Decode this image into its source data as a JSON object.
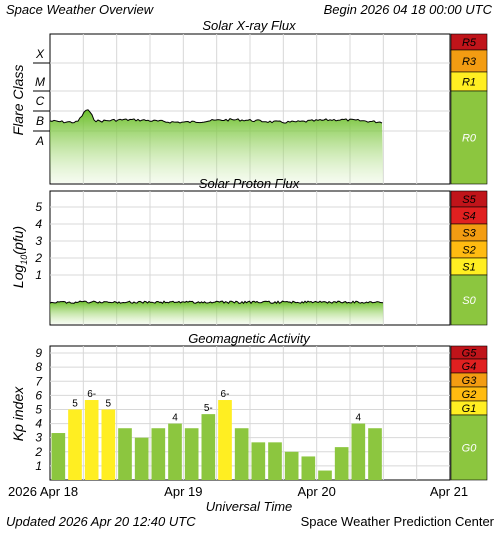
{
  "header": {
    "title": "Space Weather Overview",
    "begin": "Begin 2026 04 18 00:00 UTC"
  },
  "footer": {
    "updated": "Updated 2026 Apr 20 12:40 UTC",
    "source": "Space Weather Prediction Center"
  },
  "colors": {
    "green": "#8cc63f",
    "yellow": "#ffee22",
    "orange": "#f39c12",
    "red": "#e02020",
    "darkred": "#c0141a",
    "grid": "#d8d8d8"
  },
  "chart_data": [
    {
      "type": "area",
      "title": "Solar X-ray Flux",
      "ylabel": "Flare Class",
      "y_ticks": [
        "A",
        "B",
        "C",
        "M",
        "X"
      ],
      "scale_labels": [
        "R5",
        "R3",
        "R1",
        "R0"
      ],
      "x_ticks": [
        "2026 Apr 18",
        "Apr 19",
        "Apr 20",
        "Apr 21"
      ],
      "x_range_hours": [
        0,
        72
      ],
      "data_end_hour": 60,
      "level_class": "B",
      "peak": {
        "hour": 6.5,
        "class": "B6"
      }
    },
    {
      "type": "area",
      "title": "Solar Proton Flux",
      "ylabel": "Log10(pfu)",
      "y_ticks": [
        "1",
        "2",
        "3",
        "4",
        "5"
      ],
      "scale_labels": [
        "S5",
        "S4",
        "S3",
        "S2",
        "S1",
        "S0"
      ],
      "x_range_hours": [
        0,
        72
      ],
      "data_end_hour": 60,
      "level_log10_pfu": -0.6
    },
    {
      "type": "bar",
      "title": "Geomagnetic Activity",
      "xlabel": "Universal Time",
      "ylabel": "Kp index",
      "y_ticks": [
        "1",
        "2",
        "3",
        "4",
        "5",
        "6",
        "7",
        "8",
        "9"
      ],
      "ylim": [
        0,
        9
      ],
      "scale_labels": [
        "G5",
        "G4",
        "G3",
        "G2",
        "G1",
        "G0"
      ],
      "x_ticks": [
        "2026 Apr 18",
        "Apr 19",
        "Apr 20",
        "Apr 21"
      ],
      "interval_hours": 3,
      "values": [
        3.33,
        5.0,
        5.67,
        5.0,
        3.67,
        3.0,
        3.67,
        4.0,
        3.67,
        4.67,
        5.67,
        3.67,
        2.67,
        2.67,
        2.0,
        1.67,
        0.67,
        2.33,
        4.0,
        3.67
      ],
      "labels": [
        "",
        "5",
        "6-",
        "5",
        "",
        "",
        "",
        "4",
        "",
        "5-",
        "6-",
        "",
        "",
        "",
        "",
        "",
        "",
        "",
        "4",
        ""
      ]
    }
  ]
}
